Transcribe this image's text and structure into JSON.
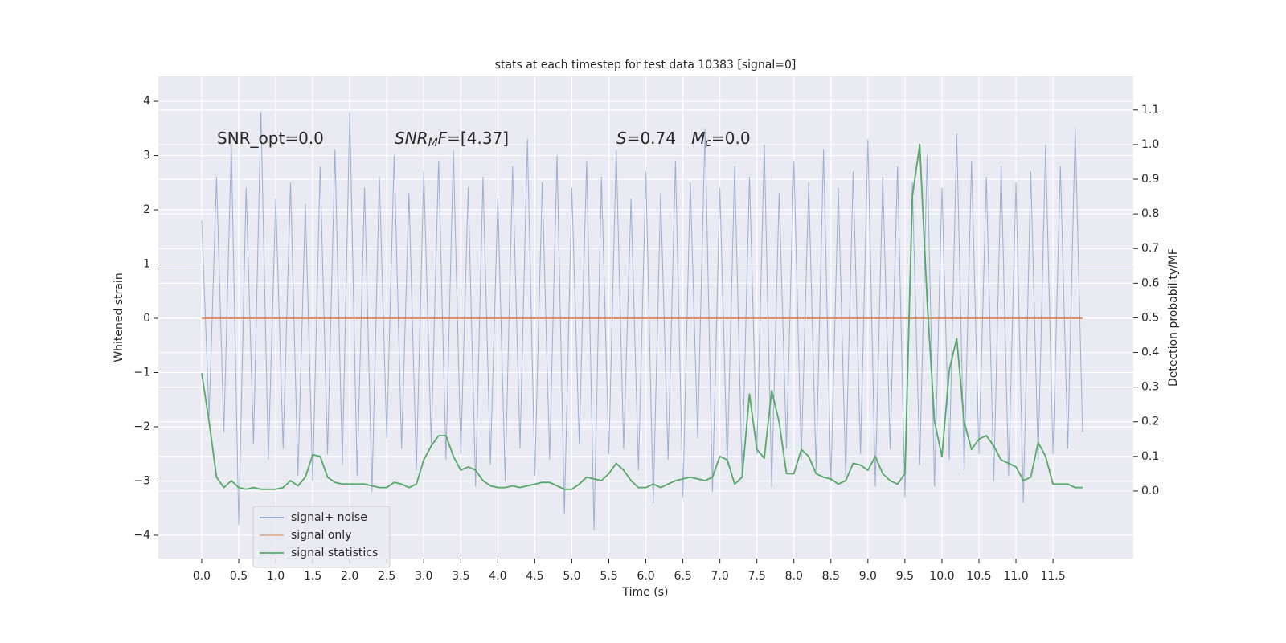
{
  "chart_data": {
    "type": "line",
    "title": "stats at each timestep for test data 10383 [signal=0]",
    "xlabel": "Time (s)",
    "ylabel": "Whitened strain",
    "y2label": "Detection probability/MF",
    "x": [
      0,
      0.1,
      0.2,
      0.3,
      0.4,
      0.5,
      0.6,
      0.7,
      0.8,
      0.9,
      1,
      1.1,
      1.2,
      1.3,
      1.4,
      1.5,
      1.6,
      1.7,
      1.8,
      1.9,
      2,
      2.1,
      2.2,
      2.3,
      2.4,
      2.5,
      2.6,
      2.7,
      2.8,
      2.9,
      3,
      3.1,
      3.2,
      3.3,
      3.4,
      3.5,
      3.6,
      3.7,
      3.8,
      3.9,
      4,
      4.1,
      4.2,
      4.3,
      4.4,
      4.5,
      4.6,
      4.7,
      4.8,
      4.9,
      5,
      5.1,
      5.2,
      5.3,
      5.4,
      5.5,
      5.6,
      5.7,
      5.8,
      5.9,
      6,
      6.1,
      6.2,
      6.3,
      6.4,
      6.5,
      6.6,
      6.7,
      6.8,
      6.9,
      7,
      7.1,
      7.2,
      7.3,
      7.4,
      7.5,
      7.6,
      7.7,
      7.8,
      7.9,
      8,
      8.1,
      8.2,
      8.3,
      8.4,
      8.5,
      8.6,
      8.7,
      8.8,
      8.9,
      9,
      9.1,
      9.2,
      9.3,
      9.4,
      9.5,
      9.6,
      9.7,
      9.8,
      9.9,
      10,
      10.1,
      10.2,
      10.3,
      10.4,
      10.5,
      10.6,
      10.7,
      10.8,
      10.9,
      11,
      11.1,
      11.2,
      11.3,
      11.4,
      11.5,
      11.6,
      11.7,
      11.8,
      11.9
    ],
    "series": [
      {
        "name": "signal+ noise",
        "color": "#4c72b0",
        "axis": "y",
        "values": [
          1.8,
          -1.8,
          2.6,
          -2.1,
          3.2,
          -3.8,
          2.4,
          -2.3,
          3.8,
          -2.6,
          2.2,
          -2.4,
          2.5,
          -2.9,
          2.1,
          -3.0,
          2.8,
          -2.5,
          3.1,
          -2.7,
          3.8,
          -2.9,
          2.4,
          -3.2,
          2.6,
          -2.2,
          3.0,
          -2.4,
          2.3,
          -2.8,
          2.7,
          -2.3,
          2.9,
          -2.6,
          3.1,
          -2.5,
          2.4,
          -3.1,
          2.6,
          -2.7,
          2.2,
          -3.0,
          2.8,
          -2.4,
          3.3,
          -2.9,
          2.5,
          -2.6,
          3.0,
          -3.6,
          2.4,
          -2.3,
          2.9,
          -3.9,
          2.6,
          -2.5,
          3.1,
          -2.4,
          2.2,
          -2.8,
          2.7,
          -3.4,
          2.3,
          -2.6,
          2.9,
          -3.3,
          2.5,
          -2.2,
          3.5,
          -3.2,
          2.4,
          -2.7,
          2.8,
          -2.9,
          2.6,
          -2.5,
          3.2,
          -3.1,
          2.3,
          -2.4,
          2.9,
          -2.6,
          2.5,
          -2.8,
          3.1,
          -3.0,
          2.4,
          -2.9,
          2.7,
          -2.5,
          3.3,
          -3.1,
          2.6,
          -2.4,
          2.8,
          -3.3,
          2.5,
          -2.7,
          3.0,
          -3.1,
          2.4,
          -2.6,
          3.4,
          -2.8,
          2.9,
          -2.5,
          2.6,
          -3.0,
          2.8,
          -2.9,
          2.5,
          -3.4,
          2.7,
          -2.6,
          3.2,
          -2.5,
          2.8,
          -2.4,
          3.5,
          -2.1
        ]
      },
      {
        "name": "signal only",
        "color": "#dd8452",
        "axis": "y",
        "values": [
          0,
          0,
          0,
          0,
          0,
          0,
          0,
          0,
          0,
          0,
          0,
          0,
          0,
          0,
          0,
          0,
          0,
          0,
          0,
          0,
          0,
          0,
          0,
          0,
          0,
          0,
          0,
          0,
          0,
          0,
          0,
          0,
          0,
          0,
          0,
          0,
          0,
          0,
          0,
          0,
          0,
          0,
          0,
          0,
          0,
          0,
          0,
          0,
          0,
          0,
          0,
          0,
          0,
          0,
          0,
          0,
          0,
          0,
          0,
          0,
          0,
          0,
          0,
          0,
          0,
          0,
          0,
          0,
          0,
          0,
          0,
          0,
          0,
          0,
          0,
          0,
          0,
          0,
          0,
          0,
          0,
          0,
          0,
          0,
          0,
          0,
          0,
          0,
          0,
          0,
          0,
          0,
          0,
          0,
          0,
          0,
          0,
          0,
          0,
          0,
          0,
          0,
          0,
          0,
          0,
          0,
          0,
          0,
          0,
          0,
          0,
          0,
          0,
          0,
          0,
          0,
          0,
          0,
          0,
          0
        ]
      },
      {
        "name": "signal statistics",
        "color": "#55a868",
        "axis": "y2",
        "values": [
          0.34,
          0.2,
          0.04,
          0.01,
          0.03,
          0.01,
          0.005,
          0.01,
          0.005,
          0.005,
          0.005,
          0.01,
          0.03,
          0.015,
          0.04,
          0.105,
          0.1,
          0.04,
          0.025,
          0.02,
          0.02,
          0.02,
          0.02,
          0.015,
          0.01,
          0.01,
          0.025,
          0.02,
          0.01,
          0.02,
          0.09,
          0.13,
          0.16,
          0.16,
          0.1,
          0.06,
          0.07,
          0.06,
          0.03,
          0.015,
          0.01,
          0.01,
          0.015,
          0.01,
          0.015,
          0.02,
          0.025,
          0.025,
          0.015,
          0.005,
          0.005,
          0.02,
          0.04,
          0.035,
          0.03,
          0.05,
          0.08,
          0.06,
          0.03,
          0.01,
          0.01,
          0.02,
          0.01,
          0.02,
          0.03,
          0.035,
          0.04,
          0.035,
          0.03,
          0.04,
          0.1,
          0.09,
          0.02,
          0.04,
          0.28,
          0.12,
          0.095,
          0.29,
          0.2,
          0.05,
          0.05,
          0.12,
          0.1,
          0.05,
          0.04,
          0.035,
          0.02,
          0.03,
          0.08,
          0.075,
          0.06,
          0.1,
          0.05,
          0.03,
          0.02,
          0.05,
          0.85,
          1.0,
          0.55,
          0.2,
          0.1,
          0.35,
          0.44,
          0.2,
          0.12,
          0.15,
          0.16,
          0.13,
          0.09,
          0.08,
          0.07,
          0.03,
          0.04,
          0.14,
          0.1,
          0.02,
          0.02,
          0.02,
          0.01,
          0.01
        ]
      }
    ],
    "xlim": [
      -0.586,
      12.585
    ],
    "xticks": [
      {
        "value": 0,
        "label": "0.0"
      },
      0.5,
      {
        "value": 1,
        "label": "1.0"
      },
      1.5,
      {
        "value": 2,
        "label": "2.0"
      },
      2.5,
      {
        "value": 3,
        "label": "3.0"
      },
      3.5,
      {
        "value": 4,
        "label": "4.0"
      },
      4.5,
      {
        "value": 5,
        "label": "5.0"
      },
      5.5,
      {
        "value": 6,
        "label": "6.0"
      },
      6.5,
      {
        "value": 7,
        "label": "7.0"
      },
      7.5,
      {
        "value": 8,
        "label": "8.0"
      },
      8.5,
      {
        "value": 9,
        "label": "9.0"
      },
      9.5,
      {
        "value": 10,
        "label": "10.0"
      },
      10.5,
      {
        "value": 11,
        "label": "11.0"
      },
      11.5
    ],
    "ylim": [
      -4.43,
      4.46
    ],
    "yticks": [
      {
        "value": -4,
        "label": "−4"
      },
      {
        "value": -3,
        "label": "−3"
      },
      {
        "value": -2,
        "label": "−2"
      },
      {
        "value": -1,
        "label": "−1"
      },
      0,
      1,
      2,
      3,
      4
    ],
    "y2lim": [
      -0.195,
      1.197
    ],
    "y2ticks": [
      {
        "value": 0,
        "label": "0.0"
      },
      0.1,
      0.2,
      0.3,
      0.4,
      0.5,
      0.6,
      0.7,
      0.8,
      0.9,
      {
        "value": 1,
        "label": "1.0"
      },
      1.1
    ],
    "grid": true,
    "legend": "lower left",
    "annotations": [
      [
        {
          "t": "SNR_opt=0.0"
        }
      ],
      [
        {
          "t": "SNR",
          "italic": true
        },
        {
          "t": "M",
          "italic": true,
          "sub": true
        },
        {
          "t": "F",
          "italic": true
        },
        {
          "t": "=[4.37]"
        }
      ],
      [
        {
          "t": "S",
          "italic": true
        },
        {
          "t": "=0.74   "
        },
        {
          "t": "M",
          "italic": true
        },
        {
          "t": "c",
          "italic": true,
          "sub": true
        },
        {
          "t": "=0.0"
        }
      ]
    ]
  }
}
